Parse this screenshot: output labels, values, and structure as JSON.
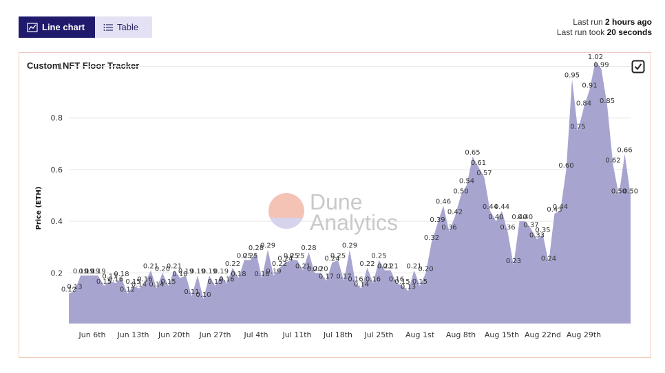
{
  "tabs": [
    {
      "label": "Line chart",
      "icon": "line-chart-icon",
      "active": true
    },
    {
      "label": "Table",
      "icon": "list-icon",
      "active": false
    }
  ],
  "run_info": {
    "last_run_prefix": "Last run",
    "last_run_value": "2 hours ago",
    "took_prefix": "Last run took",
    "took_value": "20 seconds"
  },
  "card": {
    "title": "Custom NFT Floor Tracker",
    "icon": "checkbox-icon"
  },
  "watermark": {
    "line1": "Dune",
    "line2": "Analytics"
  },
  "colors": {
    "area": "#a7a5d0",
    "active_tab": "#1f1a6b",
    "inactive_tab": "#e3e1f3",
    "border": "#f1c9bd"
  },
  "chart_data": {
    "type": "area",
    "ylabel": "Price (ETH)",
    "xlabel": "",
    "ylim": [
      0.1,
      1.1
    ],
    "y_ticks": [
      "0.2",
      "0.4",
      "0.6",
      "0.8",
      "1"
    ],
    "x_ticks": [
      "Jun 6th",
      "Jun 13th",
      "Jun 20th",
      "Jun 27th",
      "Jul 4th",
      "Jul 11th",
      "Jul 18th",
      "Jul 25th",
      "Aug 1st",
      "Aug 8th",
      "Aug 15th",
      "Aug 22nd",
      "Aug 29th"
    ],
    "series": [
      {
        "values": [
          0.12,
          0.13,
          0.19,
          0.19,
          0.19,
          0.19,
          0.15,
          0.17,
          0.16,
          0.18,
          0.12,
          0.15,
          0.14,
          0.16,
          0.21,
          0.14,
          0.2,
          0.15,
          0.21,
          0.18,
          0.19,
          0.11,
          0.19,
          0.1,
          0.19,
          0.15,
          0.19,
          0.16,
          0.22,
          0.18,
          0.25,
          0.25,
          0.28,
          0.18,
          0.29,
          0.19,
          0.22,
          0.24,
          0.25,
          0.25,
          0.21,
          0.28,
          0.2,
          0.2,
          0.17,
          0.24,
          0.25,
          0.17,
          0.29,
          0.16,
          0.14,
          0.22,
          0.16,
          0.25,
          0.21,
          0.21,
          0.16,
          0.15,
          0.13,
          0.21,
          0.15,
          0.2,
          0.32,
          0.39,
          0.46,
          0.36,
          0.42,
          0.5,
          0.54,
          0.65,
          0.61,
          0.57,
          0.44,
          0.4,
          0.44,
          0.36,
          0.23,
          0.4,
          0.4,
          0.37,
          0.33,
          0.35,
          0.24,
          0.43,
          0.44,
          0.6,
          0.95,
          0.75,
          0.84,
          0.91,
          1.02,
          0.99,
          0.85,
          0.62,
          0.5,
          0.66,
          0.5
        ],
        "labels": [
          "0.12",
          "0.13",
          "0.19",
          "0.19",
          "0.19",
          "0.19",
          "0.15",
          "0.17",
          "0.16",
          "0.18",
          "0.12",
          "0.15",
          "0.14",
          "0.16",
          "0.21",
          "0.14",
          "0.20",
          "0.15",
          "0.21",
          "0.18",
          "0.19",
          "0.11",
          "0.19",
          "0.10",
          "0.19",
          "0.15",
          "0.19",
          "0.16",
          "0.22",
          "0.18",
          "0.25",
          "0.25",
          "0.28",
          "0.18",
          "0.29",
          "0.19",
          "0.22",
          "0.24",
          "0.25",
          "0.25",
          "0.21",
          "0.28",
          "0.20",
          "0.20",
          "0.17",
          "0.24",
          "0.25",
          "0.17",
          "0.29",
          "0.16",
          "0.14",
          "0.22",
          "0.16",
          "0.25",
          "0.21",
          "0.21",
          "0.16",
          "0.15",
          "0.13",
          "0.21",
          "0.15",
          "0.20",
          "0.32",
          "0.39",
          "0.46",
          "0.36",
          "0.42",
          "0.50",
          "0.54",
          "0.65",
          "0.61",
          "0.57",
          "0.44",
          "0.40",
          "0.44",
          "0.36",
          "0.23",
          "0.40",
          "0.40",
          "0.37",
          "0.33",
          "0.35",
          "0.24",
          "0.43",
          "0.44",
          "0.60",
          "0.95",
          "0.75",
          "0.84",
          "0.91",
          "1.02",
          "0.99",
          "0.85",
          "0.62",
          "0.50",
          "0.66",
          "0.50"
        ]
      }
    ]
  }
}
